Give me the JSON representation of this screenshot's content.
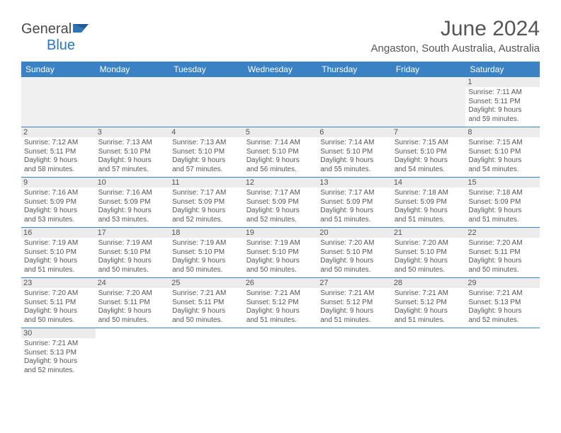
{
  "logo": {
    "text1": "General",
    "text2": "Blue"
  },
  "title": "June 2024",
  "location": "Angaston, South Australia, Australia",
  "day_headers": [
    "Sunday",
    "Monday",
    "Tuesday",
    "Wednesday",
    "Thursday",
    "Friday",
    "Saturday"
  ],
  "colors": {
    "header_bg": "#3b82c4",
    "header_text": "#ffffff",
    "border": "#3b82c4",
    "daynum_bg": "#ececec",
    "text": "#555555",
    "empty_bg": "#f0f0f0"
  },
  "weeks": [
    [
      null,
      null,
      null,
      null,
      null,
      null,
      {
        "n": "1",
        "sr": "Sunrise: 7:11 AM",
        "ss": "Sunset: 5:11 PM",
        "d1": "Daylight: 9 hours",
        "d2": "and 59 minutes."
      }
    ],
    [
      {
        "n": "2",
        "sr": "Sunrise: 7:12 AM",
        "ss": "Sunset: 5:11 PM",
        "d1": "Daylight: 9 hours",
        "d2": "and 58 minutes."
      },
      {
        "n": "3",
        "sr": "Sunrise: 7:13 AM",
        "ss": "Sunset: 5:10 PM",
        "d1": "Daylight: 9 hours",
        "d2": "and 57 minutes."
      },
      {
        "n": "4",
        "sr": "Sunrise: 7:13 AM",
        "ss": "Sunset: 5:10 PM",
        "d1": "Daylight: 9 hours",
        "d2": "and 57 minutes."
      },
      {
        "n": "5",
        "sr": "Sunrise: 7:14 AM",
        "ss": "Sunset: 5:10 PM",
        "d1": "Daylight: 9 hours",
        "d2": "and 56 minutes."
      },
      {
        "n": "6",
        "sr": "Sunrise: 7:14 AM",
        "ss": "Sunset: 5:10 PM",
        "d1": "Daylight: 9 hours",
        "d2": "and 55 minutes."
      },
      {
        "n": "7",
        "sr": "Sunrise: 7:15 AM",
        "ss": "Sunset: 5:10 PM",
        "d1": "Daylight: 9 hours",
        "d2": "and 54 minutes."
      },
      {
        "n": "8",
        "sr": "Sunrise: 7:15 AM",
        "ss": "Sunset: 5:10 PM",
        "d1": "Daylight: 9 hours",
        "d2": "and 54 minutes."
      }
    ],
    [
      {
        "n": "9",
        "sr": "Sunrise: 7:16 AM",
        "ss": "Sunset: 5:09 PM",
        "d1": "Daylight: 9 hours",
        "d2": "and 53 minutes."
      },
      {
        "n": "10",
        "sr": "Sunrise: 7:16 AM",
        "ss": "Sunset: 5:09 PM",
        "d1": "Daylight: 9 hours",
        "d2": "and 53 minutes."
      },
      {
        "n": "11",
        "sr": "Sunrise: 7:17 AM",
        "ss": "Sunset: 5:09 PM",
        "d1": "Daylight: 9 hours",
        "d2": "and 52 minutes."
      },
      {
        "n": "12",
        "sr": "Sunrise: 7:17 AM",
        "ss": "Sunset: 5:09 PM",
        "d1": "Daylight: 9 hours",
        "d2": "and 52 minutes."
      },
      {
        "n": "13",
        "sr": "Sunrise: 7:17 AM",
        "ss": "Sunset: 5:09 PM",
        "d1": "Daylight: 9 hours",
        "d2": "and 51 minutes."
      },
      {
        "n": "14",
        "sr": "Sunrise: 7:18 AM",
        "ss": "Sunset: 5:09 PM",
        "d1": "Daylight: 9 hours",
        "d2": "and 51 minutes."
      },
      {
        "n": "15",
        "sr": "Sunrise: 7:18 AM",
        "ss": "Sunset: 5:09 PM",
        "d1": "Daylight: 9 hours",
        "d2": "and 51 minutes."
      }
    ],
    [
      {
        "n": "16",
        "sr": "Sunrise: 7:19 AM",
        "ss": "Sunset: 5:10 PM",
        "d1": "Daylight: 9 hours",
        "d2": "and 51 minutes."
      },
      {
        "n": "17",
        "sr": "Sunrise: 7:19 AM",
        "ss": "Sunset: 5:10 PM",
        "d1": "Daylight: 9 hours",
        "d2": "and 50 minutes."
      },
      {
        "n": "18",
        "sr": "Sunrise: 7:19 AM",
        "ss": "Sunset: 5:10 PM",
        "d1": "Daylight: 9 hours",
        "d2": "and 50 minutes."
      },
      {
        "n": "19",
        "sr": "Sunrise: 7:19 AM",
        "ss": "Sunset: 5:10 PM",
        "d1": "Daylight: 9 hours",
        "d2": "and 50 minutes."
      },
      {
        "n": "20",
        "sr": "Sunrise: 7:20 AM",
        "ss": "Sunset: 5:10 PM",
        "d1": "Daylight: 9 hours",
        "d2": "and 50 minutes."
      },
      {
        "n": "21",
        "sr": "Sunrise: 7:20 AM",
        "ss": "Sunset: 5:10 PM",
        "d1": "Daylight: 9 hours",
        "d2": "and 50 minutes."
      },
      {
        "n": "22",
        "sr": "Sunrise: 7:20 AM",
        "ss": "Sunset: 5:11 PM",
        "d1": "Daylight: 9 hours",
        "d2": "and 50 minutes."
      }
    ],
    [
      {
        "n": "23",
        "sr": "Sunrise: 7:20 AM",
        "ss": "Sunset: 5:11 PM",
        "d1": "Daylight: 9 hours",
        "d2": "and 50 minutes."
      },
      {
        "n": "24",
        "sr": "Sunrise: 7:20 AM",
        "ss": "Sunset: 5:11 PM",
        "d1": "Daylight: 9 hours",
        "d2": "and 50 minutes."
      },
      {
        "n": "25",
        "sr": "Sunrise: 7:21 AM",
        "ss": "Sunset: 5:11 PM",
        "d1": "Daylight: 9 hours",
        "d2": "and 50 minutes."
      },
      {
        "n": "26",
        "sr": "Sunrise: 7:21 AM",
        "ss": "Sunset: 5:12 PM",
        "d1": "Daylight: 9 hours",
        "d2": "and 51 minutes."
      },
      {
        "n": "27",
        "sr": "Sunrise: 7:21 AM",
        "ss": "Sunset: 5:12 PM",
        "d1": "Daylight: 9 hours",
        "d2": "and 51 minutes."
      },
      {
        "n": "28",
        "sr": "Sunrise: 7:21 AM",
        "ss": "Sunset: 5:12 PM",
        "d1": "Daylight: 9 hours",
        "d2": "and 51 minutes."
      },
      {
        "n": "29",
        "sr": "Sunrise: 7:21 AM",
        "ss": "Sunset: 5:13 PM",
        "d1": "Daylight: 9 hours",
        "d2": "and 52 minutes."
      }
    ],
    [
      {
        "n": "30",
        "sr": "Sunrise: 7:21 AM",
        "ss": "Sunset: 5:13 PM",
        "d1": "Daylight: 9 hours",
        "d2": "and 52 minutes."
      },
      null,
      null,
      null,
      null,
      null,
      null
    ]
  ]
}
